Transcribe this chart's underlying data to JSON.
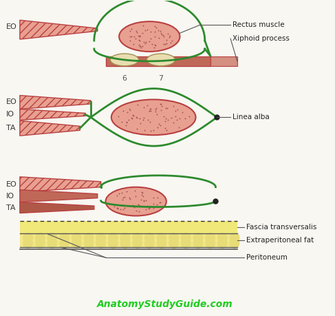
{
  "bg_color": "#f8f7f2",
  "green_color": "#2d8a2d",
  "green_fill": "#3aaa3a",
  "muscle_fill": "#e8a090",
  "muscle_edge": "#b84040",
  "fat_fill": "#f0e878",
  "fat_fill2": "#f5f0c0",
  "fat_edge": "#c8b030",
  "watermark_color": "#22cc22",
  "annotation_top_1": "Rectus muscle",
  "annotation_top_2": "Xiphoid process",
  "annotation_mid": "Linea alba",
  "annotation_bot_1": "Fascia transversalis",
  "annotation_bot_2": "Extraperitoneal fat",
  "annotation_bot_3": "Peritoneum",
  "watermark": "AnatomyStudyGuide.com",
  "num6": "6",
  "num7": "7"
}
